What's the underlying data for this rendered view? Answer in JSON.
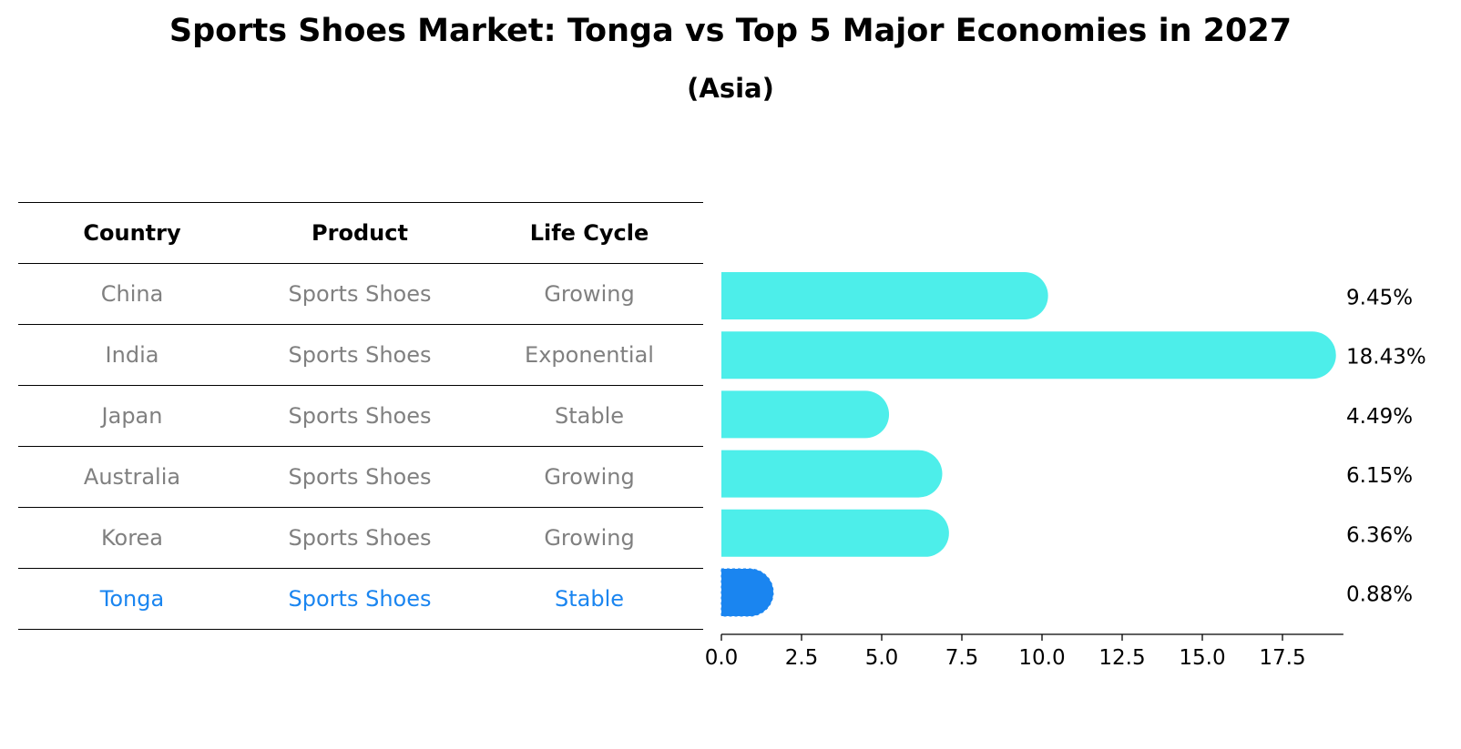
{
  "title": "Sports Shoes Market: Tonga vs Top 5 Major Economies in 2027",
  "subtitle": "(Asia)",
  "table": {
    "headers": [
      "Country",
      "Product",
      "Life Cycle"
    ],
    "rows": [
      {
        "country": "China",
        "product": "Sports Shoes",
        "life_cycle": "Growing",
        "highlight": false
      },
      {
        "country": "India",
        "product": "Sports Shoes",
        "life_cycle": "Exponential",
        "highlight": false
      },
      {
        "country": "Japan",
        "product": "Sports Shoes",
        "life_cycle": "Stable",
        "highlight": false
      },
      {
        "country": "Australia",
        "product": "Sports Shoes",
        "life_cycle": "Growing",
        "highlight": false
      },
      {
        "country": "Korea",
        "product": "Sports Shoes",
        "life_cycle": "Growing",
        "highlight": false
      },
      {
        "country": "Tonga",
        "product": "Sports Shoes",
        "life_cycle": "Stable",
        "highlight": true
      }
    ]
  },
  "colors": {
    "bar": "#4deeea",
    "highlight": "#1a85f0",
    "text_muted": "#808080",
    "text_highlight": "#1a85f0"
  },
  "chart_data": {
    "type": "bar",
    "orientation": "horizontal",
    "categories": [
      "China",
      "India",
      "Japan",
      "Australia",
      "Korea",
      "Tonga"
    ],
    "values": [
      9.45,
      18.43,
      4.49,
      6.15,
      6.36,
      0.88
    ],
    "value_labels": [
      "9.45%",
      "18.43%",
      "4.49%",
      "6.15%",
      "6.36%",
      "0.88%"
    ],
    "xlim": [
      0,
      19.4
    ],
    "xticks": [
      0,
      2.5,
      5,
      7.5,
      10,
      12.5,
      15,
      17.5
    ],
    "xtick_labels": [
      "0.0",
      "2.5",
      "5.0",
      "7.5",
      "10.0",
      "12.5",
      "15.0",
      "17.5"
    ],
    "highlight_category": "Tonga",
    "grid": false
  }
}
